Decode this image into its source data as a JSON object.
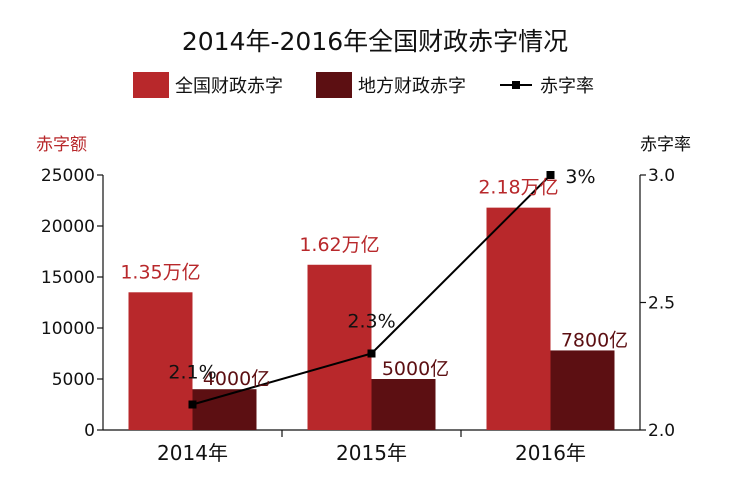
{
  "chart_data": {
    "type": "bar",
    "title": "2014年-2016年全国财政赤字情况",
    "categories": [
      "2014年",
      "2015年",
      "2016年"
    ],
    "series": [
      {
        "name": "全国财政赤字",
        "values": [
          13500,
          16200,
          21800
        ],
        "labels": [
          "1.35万亿",
          "1.62万亿",
          "2.18万亿"
        ],
        "color": "#b8282b"
      },
      {
        "name": "地方财政赤字",
        "values": [
          4000,
          5000,
          7800
        ],
        "labels": [
          "4000亿",
          "5000亿",
          "7800亿"
        ],
        "color": "#5c0f12"
      },
      {
        "name": "赤字率",
        "type": "line",
        "axis": "right",
        "values": [
          2.1,
          2.3,
          3.0
        ],
        "labels": [
          "2.1%",
          "2.3%",
          "3%"
        ],
        "color": "#000000"
      }
    ],
    "ylabel": "赤字额",
    "ylim": [
      0,
      25000
    ],
    "yticks": [
      "0",
      "5000",
      "10000",
      "15000",
      "20000",
      "25000"
    ],
    "y2label": "赤字率",
    "y2lim": [
      2.0,
      3.0
    ],
    "y2ticks": [
      "2.0",
      "2.5",
      "3.0"
    ],
    "legend_position": "top",
    "grid": false
  }
}
